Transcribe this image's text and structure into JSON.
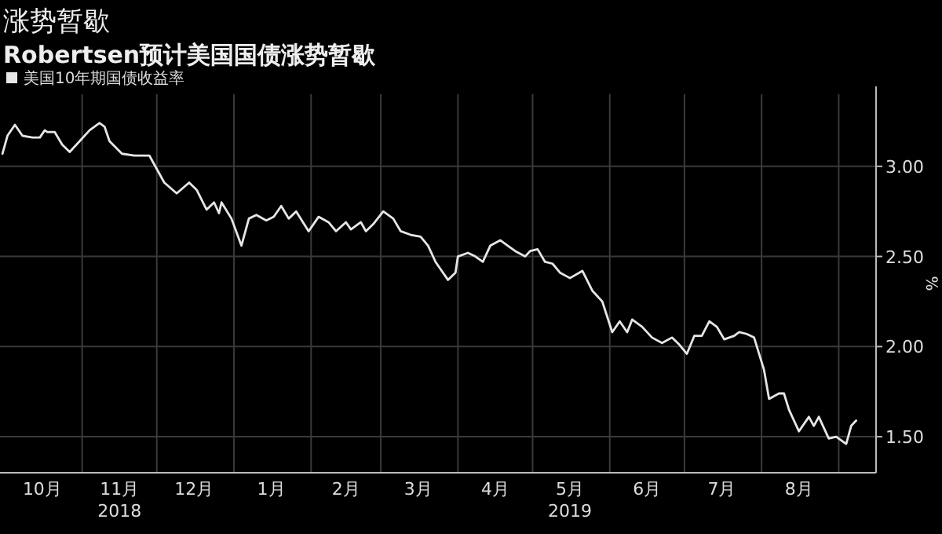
{
  "chart_data": {
    "type": "line",
    "title": "涨势暂歇",
    "subtitle": "Robertsen预计美国国债涨势暂歇",
    "ylabel": "%",
    "legend": "top left",
    "grid": true,
    "xlim": [
      "2018-09-29",
      "2019-09-16"
    ],
    "ylim": [
      1.3,
      3.4
    ],
    "yticks": [
      {
        "value": 1.5,
        "label": "1.50"
      },
      {
        "value": 2,
        "label": "2.00"
      },
      {
        "value": 2.5,
        "label": "2.50"
      },
      {
        "value": 3,
        "label": "3.00"
      }
    ],
    "xticks": [
      {
        "value": "2018-10-16",
        "label": "10月"
      },
      {
        "value": "2018-11-01",
        "label": null
      },
      {
        "value": "2018-11-16",
        "label": "11月\n2018"
      },
      {
        "value": "2018-12-01",
        "label": null
      },
      {
        "value": "2018-12-16",
        "label": "12月"
      },
      {
        "value": "2019-01-01",
        "label": null
      },
      {
        "value": "2019-01-16",
        "label": "1月"
      },
      {
        "value": "2019-02-01",
        "label": null
      },
      {
        "value": "2019-02-15",
        "label": "2月"
      },
      {
        "value": "2019-03-01",
        "label": null
      },
      {
        "value": "2019-03-16",
        "label": "3月"
      },
      {
        "value": "2019-04-01",
        "label": null
      },
      {
        "value": "2019-04-16",
        "label": "4月"
      },
      {
        "value": "2019-05-01",
        "label": null
      },
      {
        "value": "2019-05-16",
        "label": "5月\n2019"
      },
      {
        "value": "2019-06-01",
        "label": null
      },
      {
        "value": "2019-06-16",
        "label": "6月"
      },
      {
        "value": "2019-07-01",
        "label": null
      },
      {
        "value": "2019-07-16",
        "label": "7月"
      },
      {
        "value": "2019-08-01",
        "label": null
      },
      {
        "value": "2019-08-16",
        "label": "8月"
      },
      {
        "value": "2019-09-01",
        "label": null
      }
    ],
    "x": [
      "2018-09-30",
      "2018-10-02",
      "2018-10-05",
      "2018-10-08",
      "2018-10-12",
      "2018-10-15",
      "2018-10-17",
      "2018-10-18",
      "2018-10-21",
      "2018-10-24",
      "2018-10-27",
      "2018-10-31",
      "2018-11-04",
      "2018-11-08",
      "2018-11-10",
      "2018-11-12",
      "2018-11-17",
      "2018-11-22",
      "2018-11-25",
      "2018-11-28",
      "2018-12-04",
      "2018-12-09",
      "2018-12-14",
      "2018-12-17",
      "2018-12-21",
      "2018-12-24",
      "2018-12-26",
      "2018-12-27",
      "2018-12-31",
      "2019-01-04",
      "2019-01-07",
      "2019-01-10",
      "2019-01-14",
      "2019-01-17",
      "2019-01-20",
      "2019-01-23",
      "2019-01-26",
      "2019-01-31",
      "2019-02-04",
      "2019-02-08",
      "2019-02-11",
      "2019-02-15",
      "2019-02-17",
      "2019-02-21",
      "2019-02-23",
      "2019-02-26",
      "2019-03-02",
      "2019-03-06",
      "2019-03-09",
      "2019-03-13",
      "2019-03-17",
      "2019-03-20",
      "2019-03-23",
      "2019-03-26",
      "2019-03-28",
      "2019-03-31",
      "2019-04-01",
      "2019-04-05",
      "2019-04-08",
      "2019-04-11",
      "2019-04-14",
      "2019-04-18",
      "2019-04-21",
      "2019-04-24",
      "2019-04-28",
      "2019-04-30",
      "2019-05-03",
      "2019-05-06",
      "2019-05-09",
      "2019-05-12",
      "2019-05-16",
      "2019-05-21",
      "2019-05-25",
      "2019-05-29",
      "2019-06-02",
      "2019-06-05",
      "2019-06-08",
      "2019-06-10",
      "2019-06-14",
      "2019-06-18",
      "2019-06-22",
      "2019-06-26",
      "2019-06-29",
      "2019-07-02",
      "2019-07-05",
      "2019-07-08",
      "2019-07-11",
      "2019-07-14",
      "2019-07-17",
      "2019-07-21",
      "2019-07-23",
      "2019-07-26",
      "2019-07-29",
      "2019-08-02",
      "2019-08-04",
      "2019-08-08",
      "2019-08-10",
      "2019-08-12",
      "2019-08-16",
      "2019-08-20",
      "2019-08-22",
      "2019-08-24",
      "2019-08-28",
      "2019-08-31",
      "2019-09-04",
      "2019-09-06",
      "2019-09-08"
    ],
    "series": [
      {
        "name": "美国10年期国债收益率",
        "color": "#e6e6e6",
        "values": [
          3.07,
          3.17,
          3.23,
          3.17,
          3.16,
          3.16,
          3.2,
          3.19,
          3.19,
          3.12,
          3.08,
          3.14,
          3.2,
          3.24,
          3.22,
          3.14,
          3.07,
          3.06,
          3.06,
          3.06,
          2.91,
          2.85,
          2.91,
          2.87,
          2.76,
          2.8,
          2.74,
          2.8,
          2.71,
          2.56,
          2.71,
          2.73,
          2.7,
          2.72,
          2.78,
          2.71,
          2.75,
          2.64,
          2.72,
          2.69,
          2.64,
          2.69,
          2.65,
          2.69,
          2.64,
          2.68,
          2.75,
          2.71,
          2.64,
          2.62,
          2.61,
          2.56,
          2.47,
          2.41,
          2.37,
          2.41,
          2.5,
          2.52,
          2.5,
          2.47,
          2.56,
          2.59,
          2.56,
          2.53,
          2.5,
          2.53,
          2.54,
          2.47,
          2.46,
          2.41,
          2.38,
          2.42,
          2.31,
          2.25,
          2.08,
          2.14,
          2.08,
          2.15,
          2.11,
          2.05,
          2.02,
          2.05,
          2.01,
          1.96,
          2.06,
          2.06,
          2.14,
          2.11,
          2.04,
          2.06,
          2.08,
          2.07,
          2.05,
          1.87,
          1.71,
          1.74,
          1.74,
          1.65,
          1.53,
          1.61,
          1.56,
          1.61,
          1.49,
          1.5,
          1.46,
          1.56,
          1.59
        ]
      }
    ]
  }
}
